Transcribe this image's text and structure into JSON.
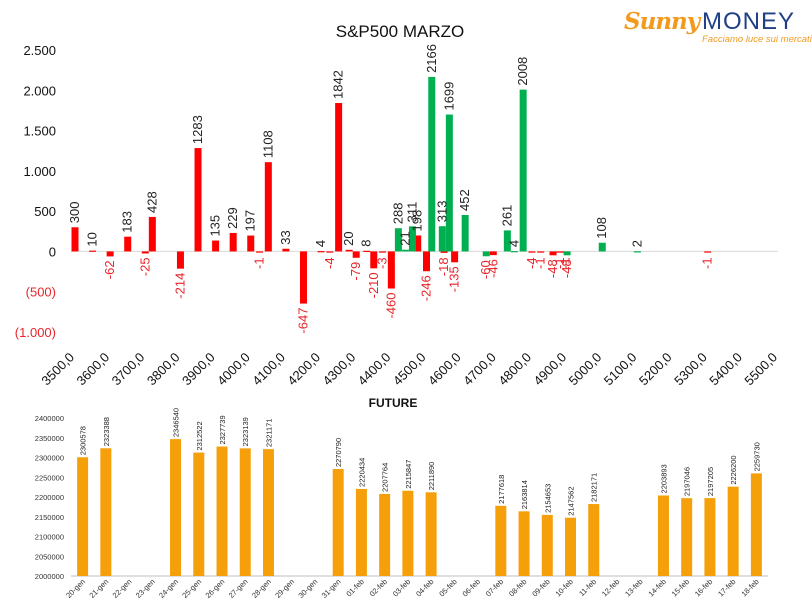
{
  "logo": {
    "name_part1": "Sunny",
    "name_part2": "MONEY",
    "tagline": "Facciamo luce sui mercati"
  },
  "chart_data": [
    {
      "type": "bar",
      "title": "S&P500 MARZO",
      "ylim": [
        -1000,
        2500
      ],
      "ytick_values": [
        2500,
        2000,
        1500,
        1000,
        500,
        0,
        -500,
        -1000
      ],
      "ytick_labels": [
        "2.500",
        "2.000",
        "1.500",
        "1.000",
        "500",
        "0",
        "(500)",
        "(1.000)"
      ],
      "xlim": [
        3500,
        5500
      ],
      "xtick_values": [
        3500,
        3600,
        3700,
        3800,
        3900,
        4000,
        4100,
        4200,
        4300,
        4400,
        4500,
        4600,
        4700,
        4800,
        4900,
        5000,
        5100,
        5200,
        5300,
        5400,
        5500
      ],
      "xtick_labels": [
        "3500,0",
        "3600,0",
        "3700,0",
        "3800,0",
        "3900,0",
        "4000,0",
        "4100,0",
        "4200,0",
        "4300,0",
        "4400,0",
        "4500,0",
        "4600,0",
        "4700,0",
        "4800,0",
        "4900,0",
        "5000,0",
        "5100,0",
        "5200,0",
        "5300,0",
        "5400,0",
        "5500,0"
      ],
      "colors": {
        "red": "#ff0000",
        "green": "#00b050",
        "neg_label": "#e8262b",
        "pos_label": "#222222"
      },
      "series": [
        {
          "color_key": "red",
          "points": [
            {
              "x": 3500,
              "y": 300
            },
            {
              "x": 3550,
              "y": 10
            },
            {
              "x": 3600,
              "y": -62
            },
            {
              "x": 3650,
              "y": 183
            },
            {
              "x": 3700,
              "y": -25
            },
            {
              "x": 3720,
              "y": 428
            },
            {
              "x": 3800,
              "y": -214
            },
            {
              "x": 3850,
              "y": 1283
            },
            {
              "x": 3900,
              "y": 135
            },
            {
              "x": 3950,
              "y": 229
            },
            {
              "x": 4000,
              "y": 197
            },
            {
              "x": 4025,
              "y": -1
            },
            {
              "x": 4050,
              "y": 1108
            },
            {
              "x": 4100,
              "y": 33
            },
            {
              "x": 4150,
              "y": -647
            },
            {
              "x": 4200,
              "y": 4
            },
            {
              "x": 4225,
              "y": -4
            },
            {
              "x": 4250,
              "y": 1842
            },
            {
              "x": 4280,
              "y": 20
            },
            {
              "x": 4300,
              "y": -79
            },
            {
              "x": 4330,
              "y": 8
            },
            {
              "x": 4350,
              "y": -210
            },
            {
              "x": 4375,
              "y": -3
            },
            {
              "x": 4400,
              "y": -460
            },
            {
              "x": 4475,
              "y": 198
            },
            {
              "x": 4500,
              "y": -246
            },
            {
              "x": 4550,
              "y": -18
            },
            {
              "x": 4580,
              "y": -135
            },
            {
              "x": 4690,
              "y": -46
            },
            {
              "x": 4800,
              "y": -4
            },
            {
              "x": 4825,
              "y": -1
            },
            {
              "x": 4860,
              "y": -48
            },
            {
              "x": 4880,
              "y": -1
            },
            {
              "x": 4895,
              "y": -1
            },
            {
              "x": 5300,
              "y": -1
            }
          ]
        },
        {
          "color_key": "green",
          "points": [
            {
              "x": 4420,
              "y": 288
            },
            {
              "x": 4440,
              "y": 21
            },
            {
              "x": 4460,
              "y": 311
            },
            {
              "x": 4515,
              "y": 2166
            },
            {
              "x": 4545,
              "y": 313
            },
            {
              "x": 4565,
              "y": 1699
            },
            {
              "x": 4610,
              "y": 452
            },
            {
              "x": 4670,
              "y": -60
            },
            {
              "x": 4730,
              "y": 261
            },
            {
              "x": 4750,
              "y": 4
            },
            {
              "x": 4775,
              "y": 2008
            },
            {
              "x": 4900,
              "y": -48
            },
            {
              "x": 5000,
              "y": 108
            },
            {
              "x": 5100,
              "y": 2
            }
          ]
        }
      ]
    },
    {
      "type": "bar",
      "title": "FUTURE",
      "ylim": [
        2000000,
        2400000
      ],
      "ytick_values": [
        2400000,
        2350000,
        2300000,
        2250000,
        2200000,
        2150000,
        2100000,
        2050000,
        2000000
      ],
      "ytick_labels": [
        "2400000",
        "2350000",
        "2300000",
        "2250000",
        "2200000",
        "2150000",
        "2100000",
        "2050000",
        "2000000"
      ],
      "categories": [
        "20-gen",
        "21-gen",
        "22-gen",
        "23-gen",
        "24-gen",
        "25-gen",
        "26-gen",
        "27-gen",
        "28-gen",
        "29-gen",
        "30-gen",
        "31-gen",
        "01-feb",
        "02-feb",
        "03-feb",
        "04-feb",
        "05-feb",
        "06-feb",
        "07-feb",
        "08-feb",
        "09-feb",
        "10-feb",
        "11-feb",
        "12-feb",
        "13-feb",
        "14-feb",
        "15-feb",
        "16-feb",
        "17-feb",
        "18-feb"
      ],
      "values": [
        2300578,
        2323388,
        null,
        null,
        2346540,
        2312522,
        2327739,
        2323139,
        2321171,
        null,
        null,
        2270790,
        2220434,
        2207764,
        2215847,
        2211890,
        null,
        null,
        2177618,
        2163814,
        2154653,
        2147562,
        2182171,
        null,
        null,
        2203893,
        2197046,
        2197205,
        2226200,
        2259730
      ],
      "colors": {
        "bar": "#f5a00a"
      }
    }
  ]
}
